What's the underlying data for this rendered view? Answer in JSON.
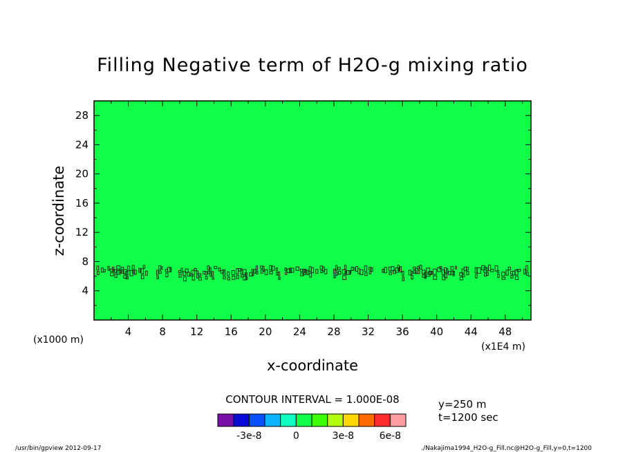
{
  "chart_data": {
    "type": "heatmap",
    "title": "Filling Negative term of H2O-g mixing ratio",
    "xlabel": "x-coordinate",
    "ylabel": "z-coordinate",
    "x_unit": "(x1E4 m)",
    "y_unit": "(x1000 m)",
    "xlim": [
      0,
      51
    ],
    "ylim": [
      0,
      30
    ],
    "x_ticks": [
      4,
      8,
      12,
      16,
      20,
      24,
      28,
      32,
      36,
      40,
      44,
      48
    ],
    "y_ticks": [
      4,
      8,
      12,
      16,
      20,
      24,
      28
    ],
    "field_value": 0,
    "noise_band_z": [
      6,
      7.5
    ],
    "contour_interval_label": "CONTOUR INTERVAL = 1.000E-08",
    "info_lines": [
      "y=250 m",
      "t=1200 sec"
    ],
    "colorbar": {
      "levels": [
        -4e-08,
        -3e-08,
        -2e-08,
        -1e-08,
        0,
        1e-08,
        2e-08,
        3e-08,
        4e-08,
        5e-08,
        6e-08,
        7e-08
      ],
      "colors": [
        "#7a10a8",
        "#0a0ad8",
        "#0a50ff",
        "#0ab4ff",
        "#10ffc0",
        "#10ff48",
        "#3cff08",
        "#b4ff10",
        "#ffd800",
        "#ff6a00",
        "#ff2a2a",
        "#ffa0a0"
      ],
      "labels": [
        "-3e-8",
        "0",
        "3e-8",
        "6e-8"
      ],
      "label_values": [
        -3e-08,
        0,
        3e-08,
        6e-08
      ]
    },
    "footer_left": "/usr/bin/gpview   2012-09-17",
    "footer_right": "./Nakajima1994_H2O-g_Fill.nc@H2O-g_Fill,y=0,t=1200"
  }
}
